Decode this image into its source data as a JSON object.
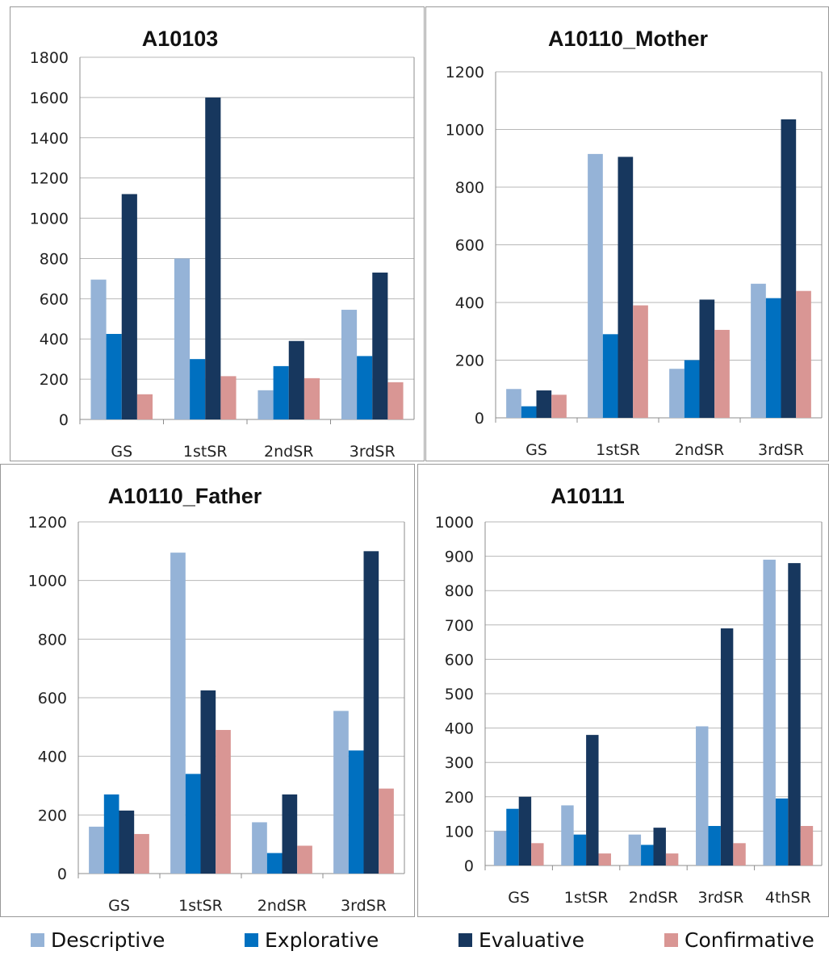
{
  "chart_data": [
    {
      "type": "bar",
      "title": "A10103",
      "categories": [
        "GS",
        "1stSR",
        "2ndSR",
        "3rdSR"
      ],
      "ylim": [
        0,
        1800
      ],
      "yticks": [
        0,
        200,
        400,
        600,
        800,
        1000,
        1200,
        1400,
        1600,
        1800
      ],
      "grid": true,
      "series": [
        {
          "name": "Descriptive",
          "values": [
            695,
            800,
            145,
            545
          ]
        },
        {
          "name": "Explorative",
          "values": [
            425,
            300,
            265,
            315
          ]
        },
        {
          "name": "Evaluative",
          "values": [
            1120,
            1600,
            390,
            730
          ]
        },
        {
          "name": "Confirmative",
          "values": [
            125,
            215,
            205,
            185
          ]
        }
      ]
    },
    {
      "type": "bar",
      "title": "A10110_Mother",
      "categories": [
        "GS",
        "1stSR",
        "2ndSR",
        "3rdSR"
      ],
      "ylim": [
        0,
        1200
      ],
      "yticks": [
        0,
        200,
        400,
        600,
        800,
        1000,
        1200
      ],
      "grid": true,
      "series": [
        {
          "name": "Descriptive",
          "values": [
            100,
            915,
            170,
            465
          ]
        },
        {
          "name": "Explorative",
          "values": [
            40,
            290,
            200,
            415
          ]
        },
        {
          "name": "Evaluative",
          "values": [
            95,
            905,
            410,
            1035
          ]
        },
        {
          "name": "Confirmative",
          "values": [
            80,
            390,
            305,
            440
          ]
        }
      ]
    },
    {
      "type": "bar",
      "title": "A10110_Father",
      "categories": [
        "GS",
        "1stSR",
        "2ndSR",
        "3rdSR"
      ],
      "ylim": [
        0,
        1200
      ],
      "yticks": [
        0,
        200,
        400,
        600,
        800,
        1000,
        1200
      ],
      "grid": true,
      "series": [
        {
          "name": "Descriptive",
          "values": [
            160,
            1095,
            175,
            555
          ]
        },
        {
          "name": "Explorative",
          "values": [
            270,
            340,
            70,
            420
          ]
        },
        {
          "name": "Evaluative",
          "values": [
            215,
            625,
            270,
            1100
          ]
        },
        {
          "name": "Confirmative",
          "values": [
            135,
            490,
            95,
            290
          ]
        }
      ]
    },
    {
      "type": "bar",
      "title": "A10111",
      "categories": [
        "GS",
        "1stSR",
        "2ndSR",
        "3rdSR",
        "4thSR"
      ],
      "ylim": [
        0,
        1000
      ],
      "yticks": [
        0,
        100,
        200,
        300,
        400,
        500,
        600,
        700,
        800,
        900,
        1000
      ],
      "grid": true,
      "series": [
        {
          "name": "Descriptive",
          "values": [
            100,
            175,
            90,
            405,
            890
          ]
        },
        {
          "name": "Explorative",
          "values": [
            165,
            90,
            60,
            115,
            195
          ]
        },
        {
          "name": "Evaluative",
          "values": [
            200,
            380,
            110,
            690,
            880
          ]
        },
        {
          "name": "Confirmative",
          "values": [
            65,
            35,
            35,
            65,
            115
          ]
        }
      ]
    }
  ],
  "legend": {
    "position": "bottom",
    "items": [
      "Descriptive",
      "Explorative",
      "Evaluative",
      "Confirmative"
    ]
  },
  "colors": {
    "Descriptive": "#95b3d7",
    "Explorative": "#0070c0",
    "Evaluative": "#17375e",
    "Confirmative": "#d99694",
    "grid": "#b7b7b7",
    "frame": "#8c8c8c"
  }
}
